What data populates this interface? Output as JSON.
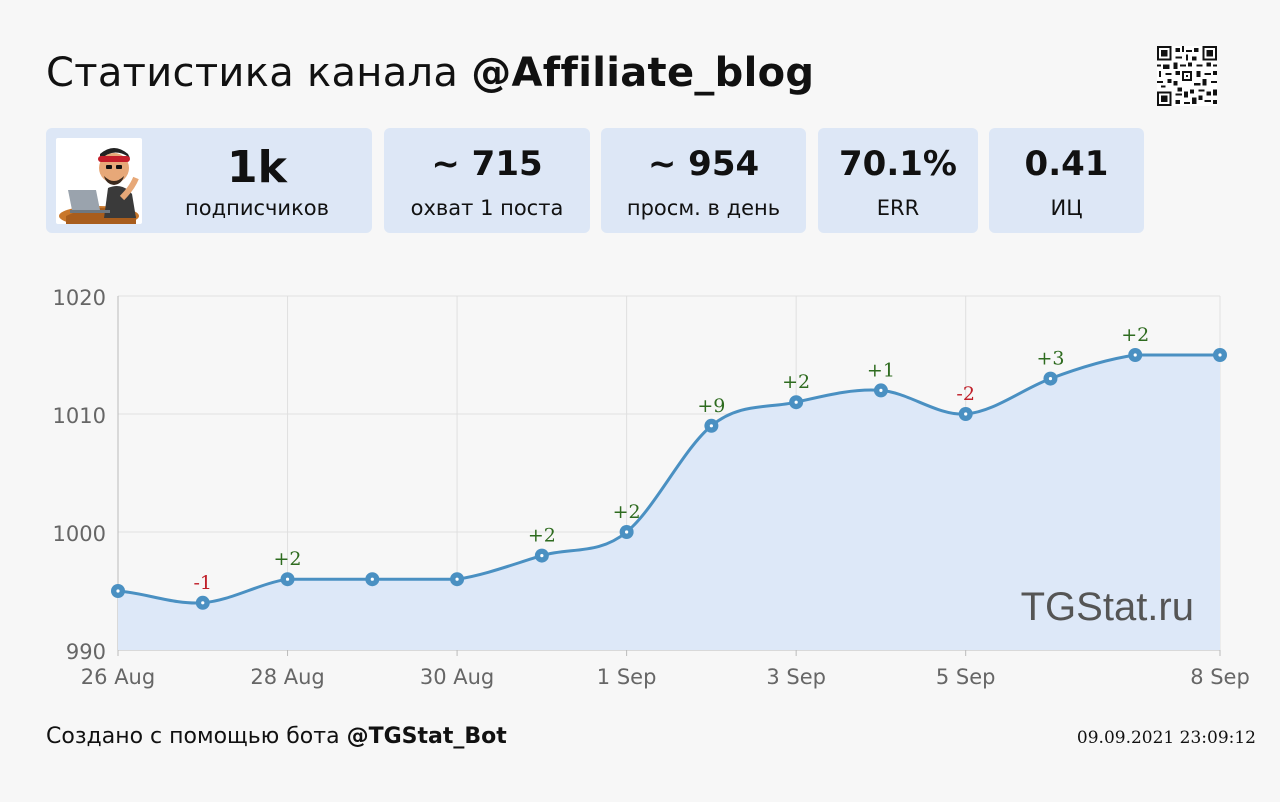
{
  "header": {
    "title_prefix": "Статистика канала ",
    "channel": "@Affiliate_blog"
  },
  "stats": [
    {
      "value": "1k",
      "label": "подписчиков"
    },
    {
      "value": "~ 715",
      "label": "охват 1 поста"
    },
    {
      "value": "~ 954",
      "label": "просм. в день"
    },
    {
      "value": "70.1%",
      "label": "ERR"
    },
    {
      "value": "0.41",
      "label": "ИЦ"
    }
  ],
  "icons": {
    "qr": "qr-code-icon",
    "avatar": "channel-avatar-icon"
  },
  "chart_data": {
    "type": "area",
    "x": [
      "26 Aug",
      "27 Aug",
      "28 Aug",
      "29 Aug",
      "30 Aug",
      "31 Aug",
      "1 Sep",
      "2 Sep",
      "3 Sep",
      "4 Sep",
      "5 Sep",
      "6 Sep",
      "7 Sep",
      "8 Sep"
    ],
    "x_tick_labels": [
      "26 Aug",
      "28 Aug",
      "30 Aug",
      "1 Sep",
      "3 Sep",
      "5 Sep",
      "8 Sep"
    ],
    "values": [
      995,
      994,
      996,
      996,
      996,
      998,
      1000,
      1009,
      1011,
      1012,
      1010,
      1013,
      1015,
      1015
    ],
    "point_labels": [
      "",
      "-1",
      "+2",
      "",
      "",
      "+2",
      "+2",
      "+9",
      "+2",
      "+1",
      "-2",
      "+3",
      "+2",
      ""
    ],
    "ylim": [
      990,
      1020
    ],
    "y_ticks": [
      990,
      1000,
      1010,
      1020
    ],
    "grid": true,
    "watermark": "TGStat.ru",
    "colors": {
      "line": "#4a90c2",
      "fill": "#dde8f8",
      "positive": "#2e6b1f",
      "negative": "#c0202a"
    }
  },
  "footer": {
    "created_prefix": "Создано с помощью бота ",
    "bot": "@TGStat_Bot",
    "timestamp": "09.09.2021 23:09:12"
  }
}
